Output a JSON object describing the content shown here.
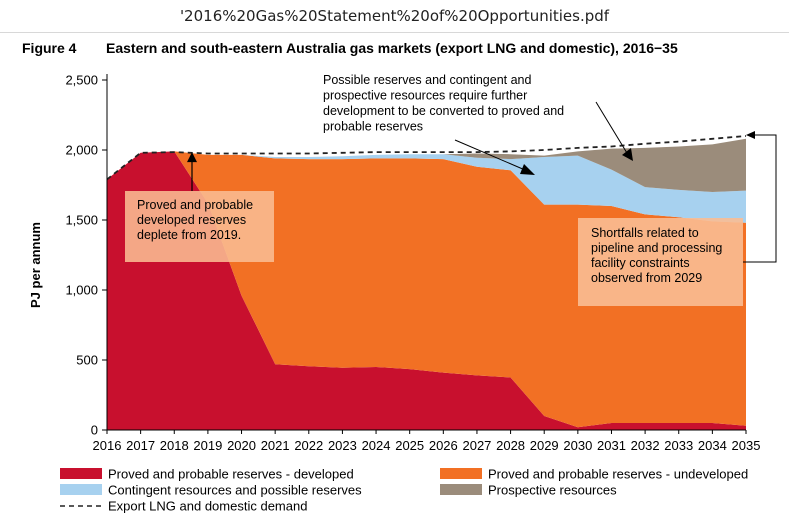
{
  "window": {
    "title": "'2016%20Gas%20Statement%20of%20Opportunities.pdf"
  },
  "figure": {
    "label": "Figure 4",
    "title": "Eastern and south-eastern Australia gas markets (export LNG and domestic), 2016−35"
  },
  "colors": {
    "developed": "#c8102e",
    "undeveloped": "#f27024",
    "contingent": "#a7d1ef",
    "prospective": "#9b8c7b",
    "demand": "#222222",
    "callout": "#f9bc93"
  },
  "annotations": {
    "developed": [
      "Proved and probable",
      "developed reserves",
      "deplete from 2019."
    ],
    "possible": [
      "Possible reserves and contingent and",
      "prospective resources require further",
      "development to be converted to proved and",
      "probable reserves"
    ],
    "shortfall": [
      "Shortfalls related to",
      "pipeline and processing",
      "facility constraints",
      "observed from 2029"
    ]
  },
  "chart_data": {
    "type": "area",
    "stacked": true,
    "title": "",
    "xlabel": "",
    "ylabel": "PJ per annum",
    "x": [
      2016,
      2017,
      2018,
      2019,
      2020,
      2021,
      2022,
      2023,
      2024,
      2025,
      2026,
      2027,
      2028,
      2029,
      2030,
      2031,
      2032,
      2033,
      2034,
      2035
    ],
    "ylim": [
      0,
      2500
    ],
    "yticks": [
      0,
      500,
      1000,
      1500,
      2000,
      2500
    ],
    "ytick_labels": [
      "0",
      "500",
      "1,000",
      "1,500",
      "2,000",
      "2,500"
    ],
    "grid": false,
    "series": [
      {
        "name": "Proved and probable reserves - developed",
        "kind": "area",
        "values": [
          1790,
          1980,
          1990,
          1620,
          960,
          470,
          455,
          445,
          450,
          435,
          410,
          390,
          375,
          100,
          20,
          50,
          50,
          50,
          50,
          30
        ]
      },
      {
        "name": "Proved and probable reserves - undeveloped",
        "kind": "area",
        "values": [
          0,
          0,
          0,
          345,
          1005,
          1470,
          1480,
          1490,
          1490,
          1505,
          1525,
          1490,
          1480,
          1510,
          1590,
          1550,
          1490,
          1470,
          1440,
          1450
        ]
      },
      {
        "name": "Contingent resources and possible reserves",
        "kind": "area",
        "values": [
          0,
          0,
          0,
          0,
          0,
          10,
          15,
          20,
          25,
          30,
          35,
          65,
          80,
          340,
          350,
          260,
          195,
          195,
          210,
          230
        ]
      },
      {
        "name": "Prospective resources",
        "kind": "area",
        "values": [
          0,
          0,
          0,
          0,
          0,
          0,
          0,
          0,
          0,
          0,
          0,
          30,
          35,
          10,
          30,
          150,
          280,
          310,
          340,
          370
        ]
      },
      {
        "name": "Export LNG and domestic demand",
        "kind": "line",
        "style": "dashed",
        "values": [
          1790,
          1980,
          1985,
          1975,
          1975,
          1975,
          1975,
          1980,
          1985,
          1985,
          1985,
          1985,
          1990,
          2000,
          2015,
          2025,
          2045,
          2060,
          2080,
          2100
        ]
      }
    ],
    "legend": {
      "position": "bottom",
      "entries": [
        "Proved and probable reserves - developed",
        "Proved and probable reserves - undeveloped",
        "Contingent resources and possible reserves",
        "Prospective resources",
        "Export LNG and domestic demand"
      ]
    }
  }
}
